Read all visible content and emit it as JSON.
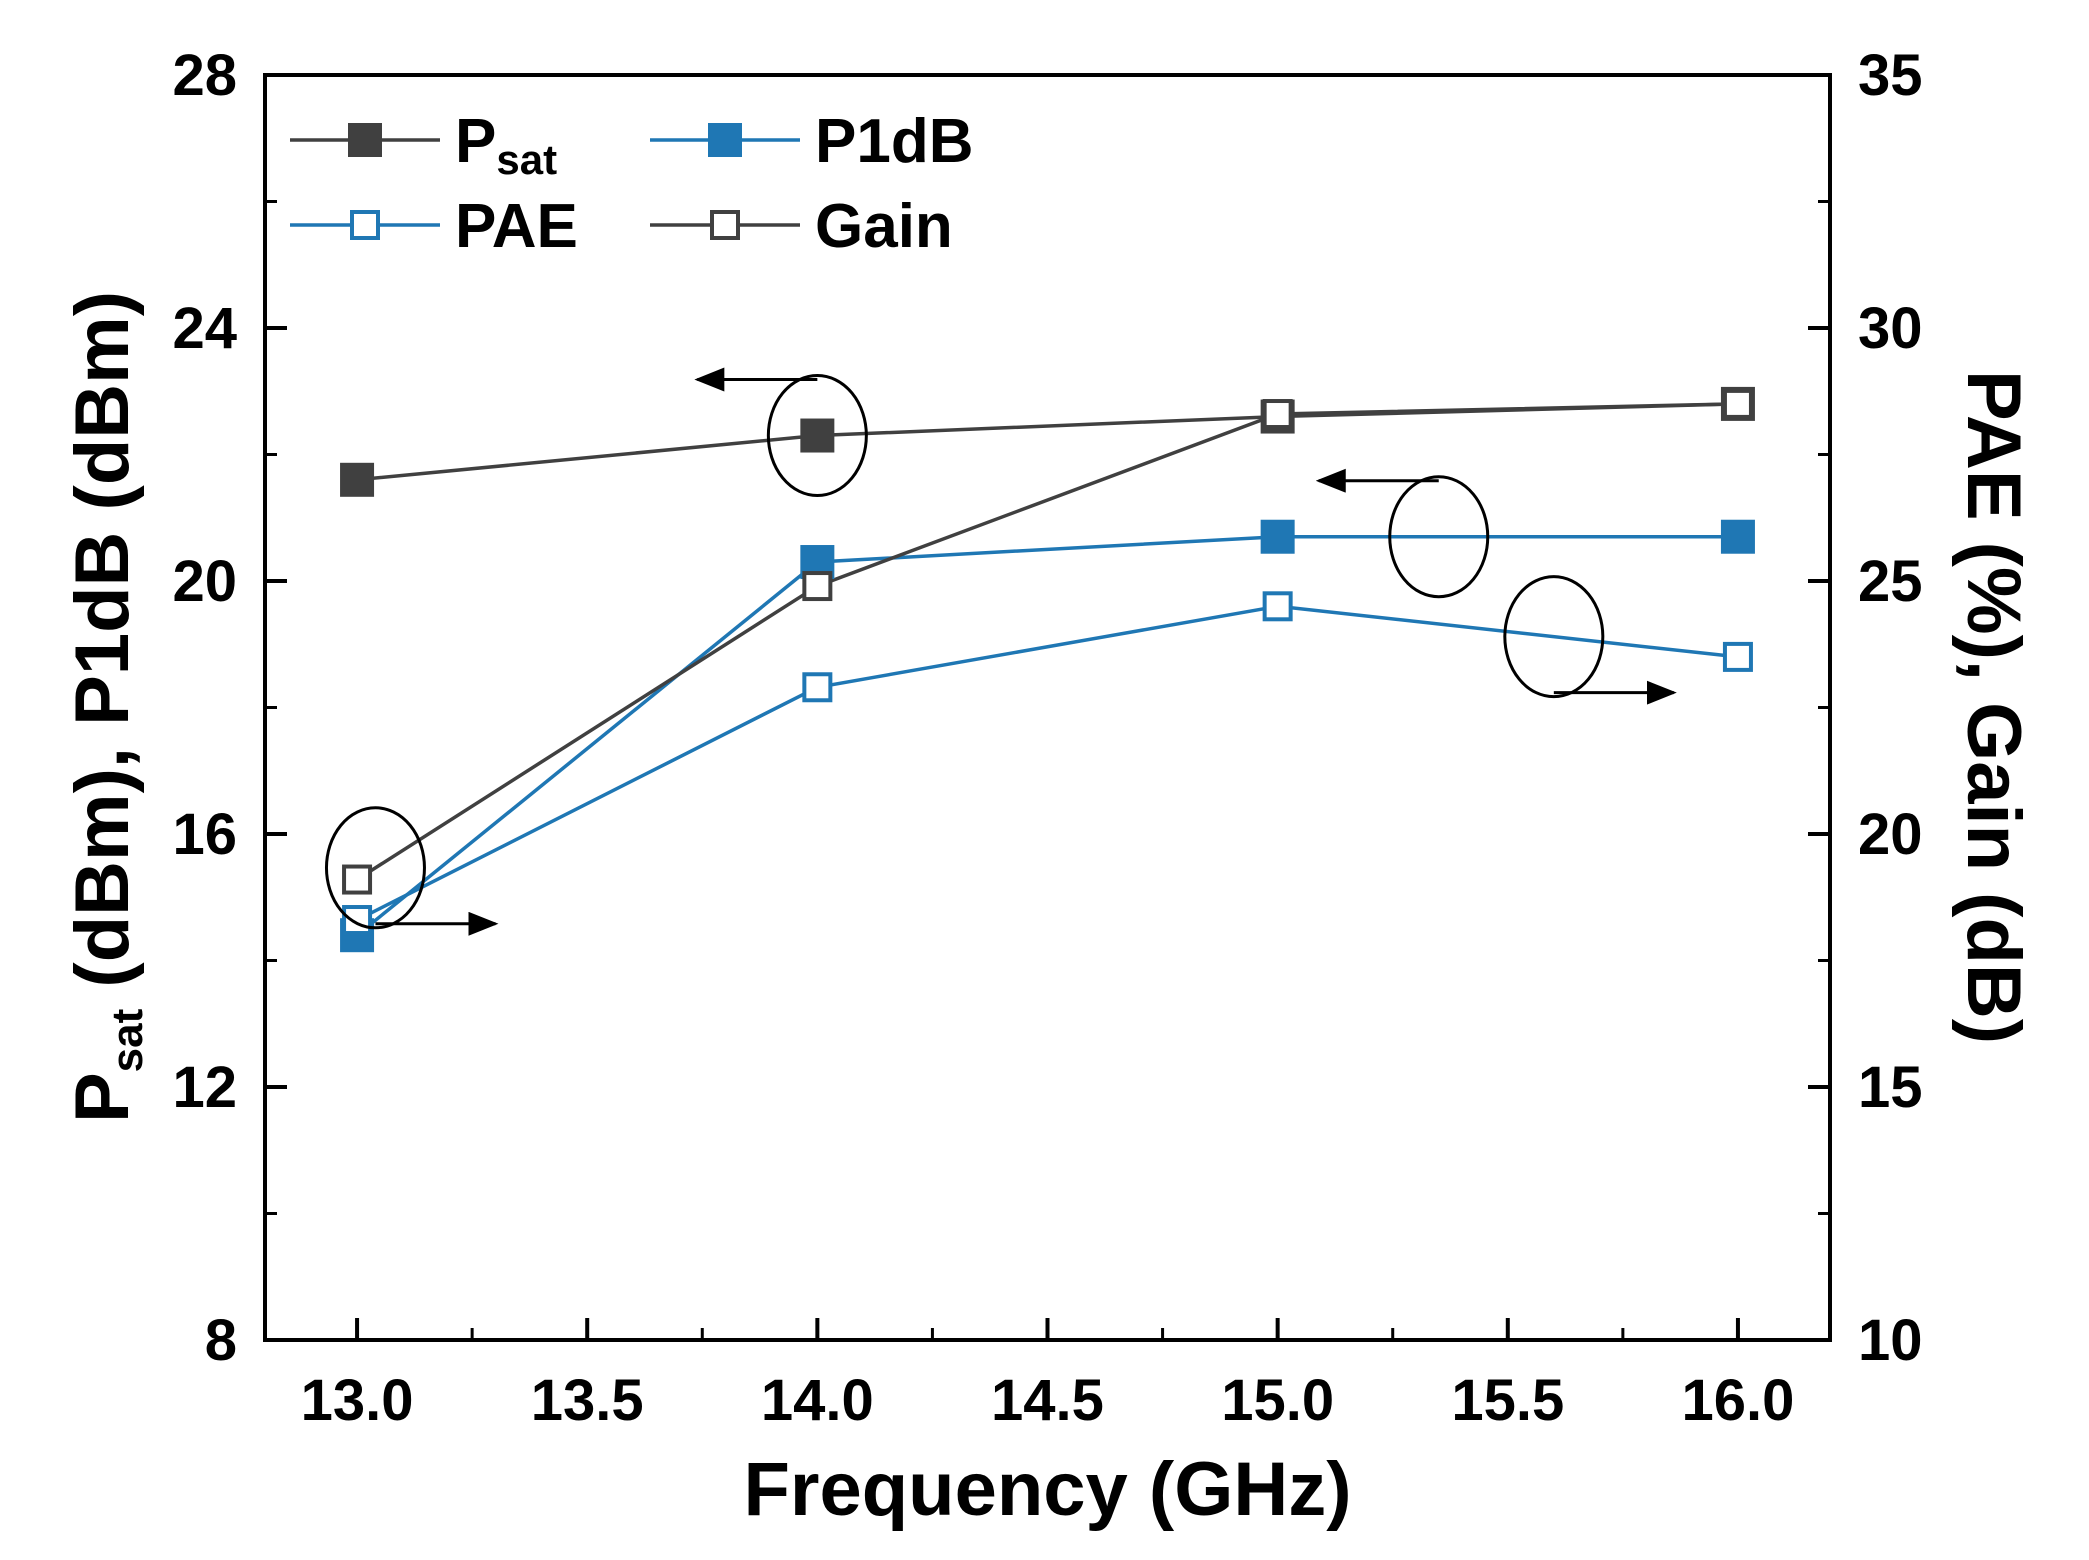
{
  "chart_data": {
    "type": "line",
    "x": [
      13.0,
      14.0,
      15.0,
      16.0
    ],
    "xlabel": "Frequency (GHz)",
    "xlim": [
      12.8,
      16.2
    ],
    "xticks": [
      "13.0",
      "13.5",
      "14.0",
      "14.5",
      "15.0",
      "15.5",
      "16.0"
    ],
    "ylabel_left": {
      "main": "P",
      "sub": "sat",
      "rest": " (dBm), P1dB (dBm)"
    },
    "ylim_left": [
      8,
      28
    ],
    "yticks_left": [
      "8",
      "12",
      "16",
      "20",
      "24",
      "28"
    ],
    "ylabel_right": "PAE (%), Gain (dB)",
    "ylim_right": [
      10,
      35
    ],
    "yticks_right": [
      "10",
      "15",
      "20",
      "25",
      "30",
      "35"
    ],
    "legend_position": "top-left",
    "series": [
      {
        "name": "Psat",
        "legend_main": "P",
        "legend_sub": "sat",
        "axis": "left",
        "marker": "filled-square",
        "color": "#404040",
        "values": [
          21.6,
          22.3,
          22.6,
          22.8
        ]
      },
      {
        "name": "P1dB",
        "legend_main": "P1dB",
        "legend_sub": "",
        "axis": "left",
        "marker": "filled-square",
        "color": "#1f77b4",
        "values": [
          14.4,
          20.3,
          20.7,
          20.7
        ]
      },
      {
        "name": "PAE",
        "legend_main": "PAE",
        "legend_sub": "",
        "axis": "right",
        "marker": "open-square",
        "color": "#1f77b4",
        "values": [
          18.3,
          22.9,
          24.5,
          23.5
        ]
      },
      {
        "name": "Gain",
        "legend_main": "Gain",
        "legend_sub": "",
        "axis": "right",
        "marker": "open-square",
        "color": "#404040",
        "values": [
          19.1,
          24.9,
          28.3,
          28.5
        ]
      }
    ],
    "annotations": [
      {
        "target": "Psat",
        "axis": "left",
        "direction": "left"
      },
      {
        "target": "P1dB",
        "axis": "left",
        "direction": "left"
      },
      {
        "target": "Gain",
        "axis": "right",
        "direction": "right"
      },
      {
        "target": "PAE",
        "axis": "right",
        "direction": "right"
      }
    ]
  }
}
